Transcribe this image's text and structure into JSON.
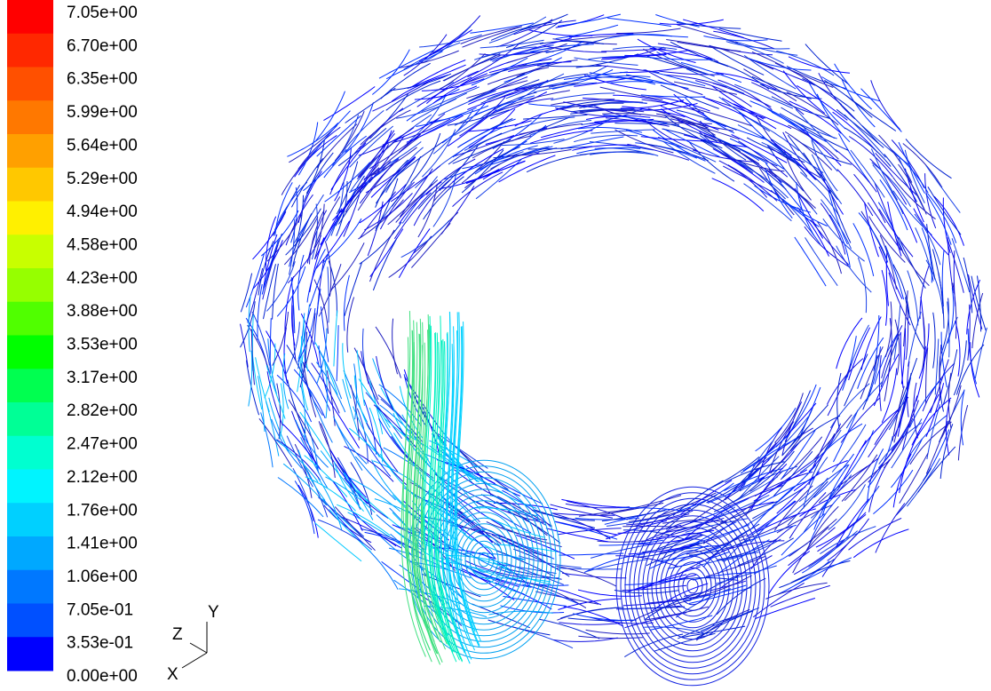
{
  "colorbar": {
    "labels": [
      "7.05e+00",
      "6.70e+00",
      "6.35e+00",
      "5.99e+00",
      "5.64e+00",
      "5.29e+00",
      "4.94e+00",
      "4.58e+00",
      "4.23e+00",
      "3.88e+00",
      "3.53e+00",
      "3.17e+00",
      "2.82e+00",
      "2.47e+00",
      "2.12e+00",
      "1.76e+00",
      "1.41e+00",
      "1.06e+00",
      "7.05e-01",
      "3.53e-01",
      "0.00e+00"
    ],
    "colors": [
      "#ff0000",
      "#ff2800",
      "#ff5000",
      "#ff7800",
      "#ffa000",
      "#ffc800",
      "#fff000",
      "#c8ff00",
      "#96ff00",
      "#50ff00",
      "#00ff00",
      "#00ff50",
      "#00ff96",
      "#00ffd0",
      "#00f4ff",
      "#00d0ff",
      "#00a8ff",
      "#0078ff",
      "#0050ff",
      "#0000ff"
    ]
  },
  "axes_triad": {
    "x": "X",
    "y": "Y",
    "z": "Z"
  }
}
